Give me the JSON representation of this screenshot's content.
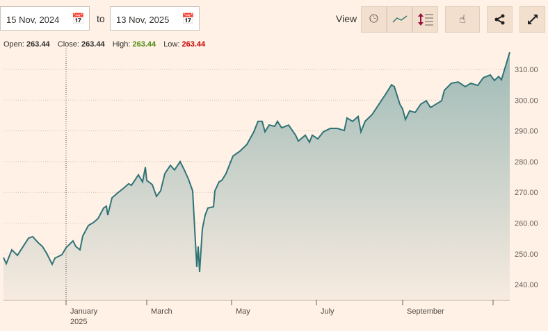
{
  "controls": {
    "from_date": "15 Nov, 2024",
    "to_label": "to",
    "to_date": "13 Nov, 2025",
    "view_label": "View",
    "icons": [
      "calendar-icon",
      "clock-icon",
      "line-chart-icon",
      "comparison-icon",
      "interactive-price-icon",
      "share-icon",
      "expand-icon"
    ]
  },
  "ohlc": {
    "open_label": "Open:",
    "open": "263.44",
    "close_label": "Close:",
    "close": "263.44",
    "high_label": "High:",
    "high": "263.44",
    "low_label": "Low:",
    "low": "263.44",
    "high_color": "#4f8a10",
    "low_color": "#cc0000"
  },
  "chart_data": {
    "type": "area",
    "title": "",
    "xlabel": "",
    "ylabel": "",
    "ylim": [
      236,
      316
    ],
    "yticks": [
      "240.00",
      "250.00",
      "260.00",
      "270.00",
      "280.00",
      "290.00",
      "300.00",
      "310.00"
    ],
    "xticks": [
      {
        "label": "January",
        "sub": "2025",
        "day": 45
      },
      {
        "label": "March",
        "day": 103
      },
      {
        "label": "May",
        "day": 164
      },
      {
        "label": "July",
        "day": 225
      },
      {
        "label": "September",
        "day": 287
      },
      {
        "label": "",
        "day": 352
      }
    ],
    "x_unit": "days since 15 Nov 2024",
    "days": [
      0,
      2,
      6,
      10,
      12,
      18,
      21,
      25,
      28,
      31,
      35,
      37,
      42,
      45,
      50,
      52,
      55,
      57,
      61,
      65,
      68,
      72,
      74,
      75,
      78,
      82,
      87,
      90,
      92,
      96,
      97,
      100,
      102,
      103,
      107,
      110,
      113,
      116,
      120,
      123,
      127,
      130,
      133,
      136,
      139,
      140,
      141,
      143,
      145,
      147,
      151,
      152,
      155,
      157,
      160,
      165,
      170,
      175,
      180,
      183,
      186,
      188,
      191,
      195,
      197,
      200,
      205,
      210,
      212,
      217,
      220,
      222,
      226,
      230,
      235,
      240,
      245,
      247,
      251,
      255,
      257,
      260,
      265,
      270,
      275,
      279,
      281,
      285,
      287,
      289,
      292,
      296,
      300,
      304,
      307,
      311,
      315,
      317,
      322,
      327,
      332,
      336,
      341,
      345,
      350,
      353,
      356,
      358,
      361,
      364
    ],
    "values": [
      248.8,
      246.8,
      251.3,
      249.5,
      250.9,
      255.1,
      255.6,
      253.6,
      252.4,
      250.2,
      246.6,
      248.6,
      249.7,
      252.0,
      254.2,
      252.4,
      251.3,
      255.8,
      259.2,
      260.3,
      261.5,
      264.9,
      265.5,
      262.6,
      268.2,
      269.8,
      271.6,
      272.8,
      272.3,
      275.0,
      275.7,
      273.4,
      278.2,
      273.9,
      272.5,
      268.7,
      270.5,
      276.1,
      278.8,
      277.3,
      280.0,
      277.3,
      274.3,
      270.5,
      245.7,
      252.4,
      244.1,
      258.1,
      262.6,
      264.9,
      265.3,
      270.5,
      273.4,
      273.9,
      276.1,
      281.8,
      283.4,
      285.6,
      289.7,
      293.1,
      293.1,
      289.7,
      291.9,
      291.5,
      293.1,
      291.0,
      291.9,
      288.6,
      286.7,
      288.6,
      286.3,
      288.6,
      287.4,
      289.7,
      290.8,
      290.8,
      290.1,
      294.2,
      293.1,
      294.7,
      289.7,
      293.1,
      295.3,
      298.7,
      302.1,
      305.0,
      304.4,
      298.7,
      297.1,
      293.7,
      296.5,
      296.0,
      298.7,
      299.8,
      297.6,
      298.7,
      299.8,
      303.2,
      305.5,
      305.9,
      304.4,
      305.5,
      304.8,
      307.3,
      308.2,
      306.4,
      307.7,
      306.6,
      311.1,
      315.6
    ]
  }
}
